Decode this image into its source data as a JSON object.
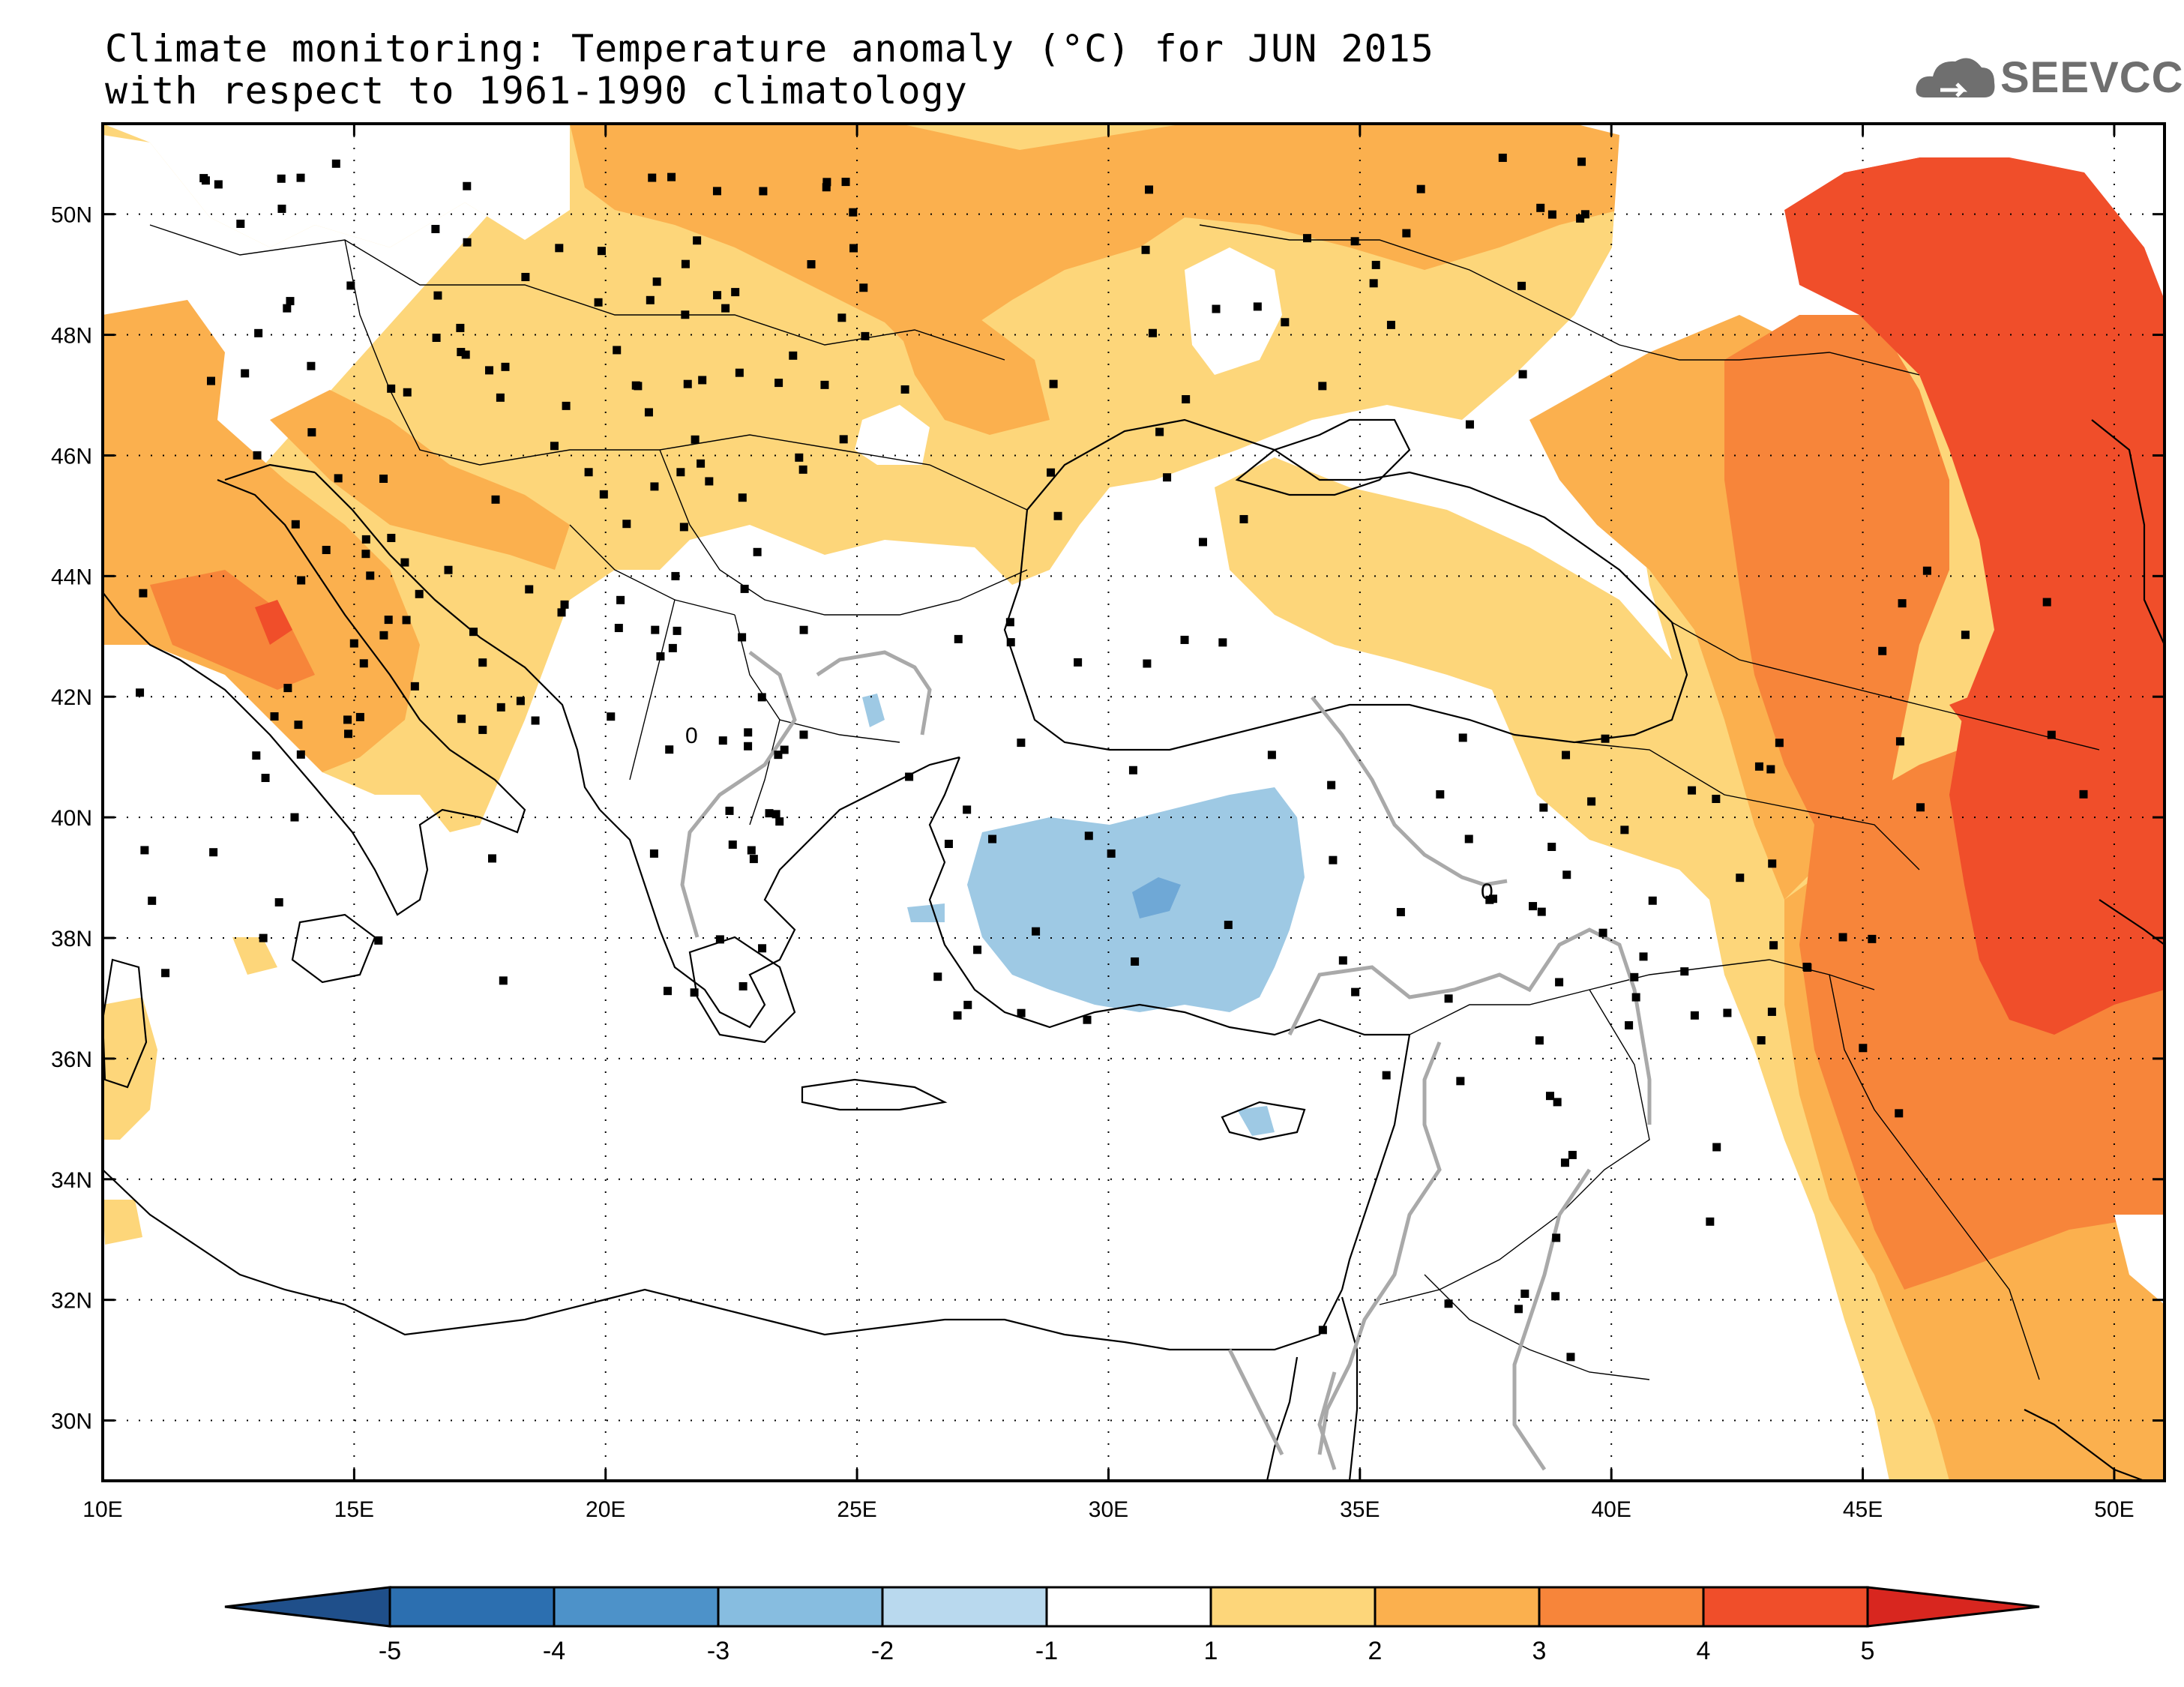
{
  "title": {
    "line1": "Climate monitoring: Temperature anomaly (°C) for JUN 2015",
    "line2": "with respect to 1961-1990 climatology"
  },
  "logo": {
    "text": "SEEVCCC",
    "icon": "cloud-icon"
  },
  "map": {
    "lon_ticks": [
      "10E",
      "15E",
      "20E",
      "25E",
      "30E",
      "35E",
      "40E",
      "45E",
      "50E"
    ],
    "lat_ticks": [
      "50N",
      "48N",
      "46N",
      "44N",
      "42N",
      "40N",
      "38N",
      "36N",
      "34N",
      "32N",
      "30N"
    ],
    "lon_range": [
      10,
      51
    ],
    "lat_range": [
      29,
      51.5
    ],
    "contour_label": "0"
  },
  "colorbar": {
    "labels": [
      "-5",
      "-4",
      "-3",
      "-2",
      "-1",
      "1",
      "2",
      "3",
      "4",
      "5"
    ],
    "colors": [
      "#1f4f8a",
      "#2c6fb0",
      "#4d92c9",
      "#87bde0",
      "#b9d9ee",
      "#ffffff",
      "#fdd67a",
      "#fbb04e",
      "#f7853a",
      "#f04e2a",
      "#d8261f"
    ]
  }
}
